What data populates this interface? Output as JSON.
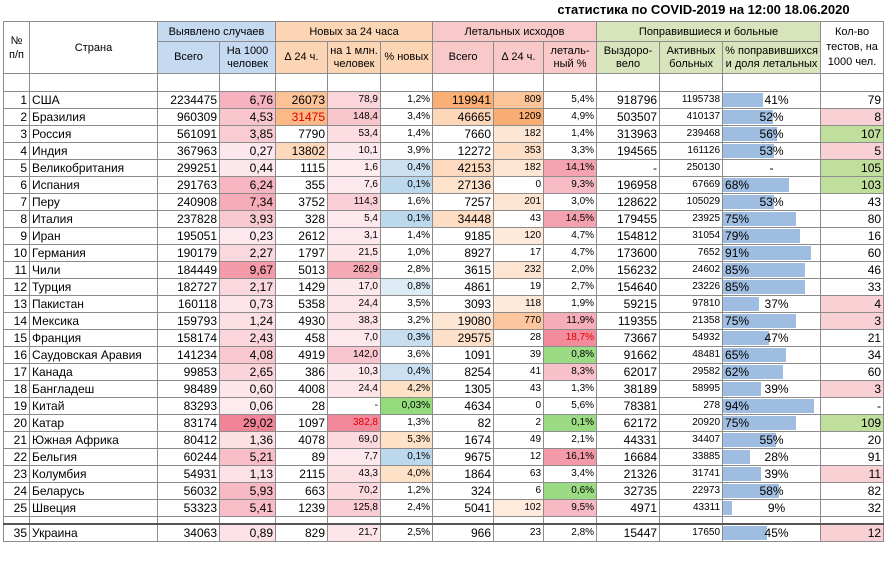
{
  "title": "статистика по COVID-2019 на 12:00 18.06.2020",
  "header": {
    "no": "№ п/п",
    "country": "Страна",
    "detected": "Выявлено случаев",
    "new24": "Новых за 24 часа",
    "deaths": "Летальных исходов",
    "recovered": "Поправившиеся и больные",
    "tests": "Кол-во тестов, на 1000 чел.",
    "total": "Всего",
    "per1000": "На 1000 человек",
    "d24": "∆ 24 ч.",
    "per1m": "на 1 млн. человек",
    "pctnew": "% новых",
    "dtotal": "Всего",
    "dd24": "∆ 24 ч.",
    "lethal": "леталь-ный %",
    "rec": "Выздоро-вело",
    "active": "Активных больных",
    "pctrec": "% поправившихся и доля летальных"
  },
  "rows": [
    {
      "n": "1",
      "country": "США",
      "total": "2234475",
      "per1000": "6,76",
      "d24": "26073",
      "per1m": "78,9",
      "pctnew": "1,2%",
      "deaths": "119941",
      "dd24": "809",
      "lethal": "5,4%",
      "rec": "918796",
      "active": "1195738",
      "pct": "41%",
      "pctv": 41,
      "tests": "79"
    },
    {
      "n": "2",
      "country": "Бразилия",
      "total": "960309",
      "per1000": "4,53",
      "d24": "31475",
      "per1m": "148,4",
      "pctnew": "3,4%",
      "deaths": "46665",
      "dd24": "1209",
      "lethal": "4,9%",
      "rec": "503507",
      "active": "410137",
      "pct": "52%",
      "pctv": 52,
      "tests": "8"
    },
    {
      "n": "3",
      "country": "Россия",
      "total": "561091",
      "per1000": "3,85",
      "d24": "7790",
      "per1m": "53,4",
      "pctnew": "1,4%",
      "deaths": "7660",
      "dd24": "182",
      "lethal": "1,4%",
      "rec": "313963",
      "active": "239468",
      "pct": "56%",
      "pctv": 56,
      "tests": "107"
    },
    {
      "n": "4",
      "country": "Индия",
      "total": "367963",
      "per1000": "0,27",
      "d24": "13802",
      "per1m": "10,1",
      "pctnew": "3,9%",
      "deaths": "12272",
      "dd24": "353",
      "lethal": "3,3%",
      "rec": "194565",
      "active": "161126",
      "pct": "53%",
      "pctv": 53,
      "tests": "5"
    },
    {
      "n": "5",
      "country": "Великобритания",
      "total": "299251",
      "per1000": "0,44",
      "d24": "1115",
      "per1m": "1,6",
      "pctnew": "0,4%",
      "deaths": "42153",
      "dd24": "182",
      "lethal": "14,1%",
      "rec": "-",
      "active": "250130",
      "pct": "-",
      "pctv": 0,
      "tests": "105"
    },
    {
      "n": "6",
      "country": "Испания",
      "total": "291763",
      "per1000": "6,24",
      "d24": "355",
      "per1m": "7,6",
      "pctnew": "0,1%",
      "deaths": "27136",
      "dd24": "0",
      "lethal": "9,3%",
      "rec": "196958",
      "active": "67669",
      "pct": "68%",
      "pctv": 68,
      "tests": "103"
    },
    {
      "n": "7",
      "country": "Перу",
      "total": "240908",
      "per1000": "7,34",
      "d24": "3752",
      "per1m": "114,3",
      "pctnew": "1,6%",
      "deaths": "7257",
      "dd24": "201",
      "lethal": "3,0%",
      "rec": "128622",
      "active": "105029",
      "pct": "53%",
      "pctv": 53,
      "tests": "43"
    },
    {
      "n": "8",
      "country": "Италия",
      "total": "237828",
      "per1000": "3,93",
      "d24": "328",
      "per1m": "5,4",
      "pctnew": "0,1%",
      "deaths": "34448",
      "dd24": "43",
      "lethal": "14,5%",
      "rec": "179455",
      "active": "23925",
      "pct": "75%",
      "pctv": 75,
      "tests": "80"
    },
    {
      "n": "9",
      "country": "Иран",
      "total": "195051",
      "per1000": "0,23",
      "d24": "2612",
      "per1m": "3,1",
      "pctnew": "1,4%",
      "deaths": "9185",
      "dd24": "120",
      "lethal": "4,7%",
      "rec": "154812",
      "active": "31054",
      "pct": "79%",
      "pctv": 79,
      "tests": "16"
    },
    {
      "n": "10",
      "country": "Германия",
      "total": "190179",
      "per1000": "2,27",
      "d24": "1797",
      "per1m": "21,5",
      "pctnew": "1,0%",
      "deaths": "8927",
      "dd24": "17",
      "lethal": "4,7%",
      "rec": "173600",
      "active": "7652",
      "pct": "91%",
      "pctv": 91,
      "tests": "60"
    },
    {
      "n": "11",
      "country": "Чили",
      "total": "184449",
      "per1000": "9,67",
      "d24": "5013",
      "per1m": "262,9",
      "pctnew": "2,8%",
      "deaths": "3615",
      "dd24": "232",
      "lethal": "2,0%",
      "rec": "156232",
      "active": "24602",
      "pct": "85%",
      "pctv": 85,
      "tests": "46"
    },
    {
      "n": "12",
      "country": "Турция",
      "total": "182727",
      "per1000": "2,17",
      "d24": "1429",
      "per1m": "17,0",
      "pctnew": "0,8%",
      "deaths": "4861",
      "dd24": "19",
      "lethal": "2,7%",
      "rec": "154640",
      "active": "23226",
      "pct": "85%",
      "pctv": 85,
      "tests": "33"
    },
    {
      "n": "13",
      "country": "Пакистан",
      "total": "160118",
      "per1000": "0,73",
      "d24": "5358",
      "per1m": "24,4",
      "pctnew": "3,5%",
      "deaths": "3093",
      "dd24": "118",
      "lethal": "1,9%",
      "rec": "59215",
      "active": "97810",
      "pct": "37%",
      "pctv": 37,
      "tests": "4"
    },
    {
      "n": "14",
      "country": "Мексика",
      "total": "159793",
      "per1000": "1,24",
      "d24": "4930",
      "per1m": "38,3",
      "pctnew": "3,2%",
      "deaths": "19080",
      "dd24": "770",
      "lethal": "11,9%",
      "rec": "119355",
      "active": "21358",
      "pct": "75%",
      "pctv": 75,
      "tests": "3"
    },
    {
      "n": "15",
      "country": "Франция",
      "total": "158174",
      "per1000": "2,43",
      "d24": "458",
      "per1m": "7,0",
      "pctnew": "0,3%",
      "deaths": "29575",
      "dd24": "28",
      "lethal": "18,7%",
      "rec": "73667",
      "active": "54932",
      "pct": "47%",
      "pctv": 47,
      "tests": "21"
    },
    {
      "n": "16",
      "country": "Саудовская Аравия",
      "total": "141234",
      "per1000": "4,08",
      "d24": "4919",
      "per1m": "142,0",
      "pctnew": "3,6%",
      "deaths": "1091",
      "dd24": "39",
      "lethal": "0,8%",
      "rec": "91662",
      "active": "48481",
      "pct": "65%",
      "pctv": 65,
      "tests": "34"
    },
    {
      "n": "17",
      "country": "Канада",
      "total": "99853",
      "per1000": "2,65",
      "d24": "386",
      "per1m": "10,3",
      "pctnew": "0,4%",
      "deaths": "8254",
      "dd24": "41",
      "lethal": "8,3%",
      "rec": "62017",
      "active": "29582",
      "pct": "62%",
      "pctv": 62,
      "tests": "60"
    },
    {
      "n": "18",
      "country": "Бангладеш",
      "total": "98489",
      "per1000": "0,60",
      "d24": "4008",
      "per1m": "24,4",
      "pctnew": "4,2%",
      "deaths": "1305",
      "dd24": "43",
      "lethal": "1,3%",
      "rec": "38189",
      "active": "58995",
      "pct": "39%",
      "pctv": 39,
      "tests": "3"
    },
    {
      "n": "19",
      "country": "Китай",
      "total": "83293",
      "per1000": "0,06",
      "d24": "28",
      "per1m": "-",
      "pctnew": "0,03%",
      "deaths": "4634",
      "dd24": "0",
      "lethal": "5,6%",
      "rec": "78381",
      "active": "278",
      "pct": "94%",
      "pctv": 94,
      "tests": "-"
    },
    {
      "n": "20",
      "country": "Катар",
      "total": "83174",
      "per1000": "29,02",
      "d24": "1097",
      "per1m": "382,8",
      "pctnew": "1,3%",
      "deaths": "82",
      "dd24": "2",
      "lethal": "0,1%",
      "rec": "62172",
      "active": "20920",
      "pct": "75%",
      "pctv": 75,
      "tests": "109"
    },
    {
      "n": "21",
      "country": "Южная Африка",
      "total": "80412",
      "per1000": "1,36",
      "d24": "4078",
      "per1m": "69,0",
      "pctnew": "5,3%",
      "deaths": "1674",
      "dd24": "49",
      "lethal": "2,1%",
      "rec": "44331",
      "active": "34407",
      "pct": "55%",
      "pctv": 55,
      "tests": "20"
    },
    {
      "n": "22",
      "country": "Бельгия",
      "total": "60244",
      "per1000": "5,21",
      "d24": "89",
      "per1m": "7,7",
      "pctnew": "0,1%",
      "deaths": "9675",
      "dd24": "12",
      "lethal": "16,1%",
      "rec": "16684",
      "active": "33885",
      "pct": "28%",
      "pctv": 28,
      "tests": "91"
    },
    {
      "n": "23",
      "country": "Колумбия",
      "total": "54931",
      "per1000": "1,13",
      "d24": "2115",
      "per1m": "43,3",
      "pctnew": "4,0%",
      "deaths": "1864",
      "dd24": "63",
      "lethal": "3,4%",
      "rec": "21326",
      "active": "31741",
      "pct": "39%",
      "pctv": 39,
      "tests": "11"
    },
    {
      "n": "24",
      "country": "Беларусь",
      "total": "56032",
      "per1000": "5,93",
      "d24": "663",
      "per1m": "70,2",
      "pctnew": "1,2%",
      "deaths": "324",
      "dd24": "6",
      "lethal": "0,6%",
      "rec": "32735",
      "active": "22973",
      "pct": "58%",
      "pctv": 58,
      "tests": "82"
    },
    {
      "n": "25",
      "country": "Швеция",
      "total": "53323",
      "per1000": "5,41",
      "d24": "1239",
      "per1m": "125,8",
      "pctnew": "2,4%",
      "deaths": "5041",
      "dd24": "102",
      "lethal": "9,5%",
      "rec": "4971",
      "active": "43311",
      "pct": "9%",
      "pctv": 9,
      "tests": "32"
    }
  ],
  "lastrow": {
    "n": "35",
    "country": "Украина",
    "total": "34063",
    "per1000": "0,89",
    "d24": "829",
    "per1m": "21,7",
    "pctnew": "2,5%",
    "deaths": "966",
    "dd24": "23",
    "lethal": "2,8%",
    "rec": "15447",
    "active": "17650",
    "pct": "45%",
    "pctv": 45,
    "tests": "12"
  },
  "colors": {
    "blue": "#c5d9f1",
    "orange": "#fcd5b4",
    "pink": "#f9c9c9",
    "green": "#d8e4bc",
    "bar": "#9fbde0",
    "red": "#e00000"
  }
}
